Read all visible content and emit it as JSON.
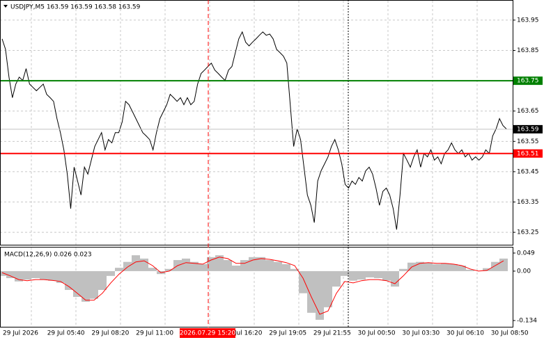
{
  "chart_data": [
    {
      "type": "line",
      "title": "USDJPY,M5  163.59 163.59 163.58 163.59",
      "xlabels": [
        "29 Jul 2026",
        "29 Jul 05:40",
        "29 Jul 08:20",
        "29 Jul 11:00",
        "29 Jul 13:40",
        "29 Jul 16:20",
        "29 Jul 19:05",
        "29 Jul 21:55",
        "30 Jul 00:50",
        "30 Jul 03:30",
        "30 Jul 06:10",
        "30 Jul 08:50"
      ],
      "crosshair_label": "2026.07.29 15:20",
      "ylim": [
        163.209,
        164.014
      ],
      "yticks": [
        163.95,
        163.85,
        163.65,
        163.55,
        163.45,
        163.35,
        163.25
      ],
      "grid": true,
      "levels": [
        {
          "value": 163.75,
          "color": "#008000"
        },
        {
          "value": 163.51,
          "color": "#ff0000"
        }
      ],
      "last": 163.59,
      "series": [
        {
          "color": "#000000",
          "values": [
            163.888,
            163.854,
            163.762,
            163.694,
            163.739,
            163.762,
            163.751,
            163.79,
            163.739,
            163.728,
            163.717,
            163.728,
            163.739,
            163.705,
            163.694,
            163.682,
            163.625,
            163.579,
            163.522,
            163.442,
            163.328,
            163.465,
            163.419,
            163.373,
            163.465,
            163.442,
            163.488,
            163.533,
            163.556,
            163.579,
            163.522,
            163.556,
            163.545,
            163.579,
            163.579,
            163.614,
            163.682,
            163.671,
            163.648,
            163.625,
            163.602,
            163.579,
            163.568,
            163.556,
            163.522,
            163.579,
            163.625,
            163.648,
            163.671,
            163.705,
            163.694,
            163.682,
            163.694,
            163.671,
            163.694,
            163.671,
            163.682,
            163.739,
            163.774,
            163.785,
            163.797,
            163.808,
            163.785,
            163.774,
            163.762,
            163.751,
            163.785,
            163.797,
            163.843,
            163.888,
            163.911,
            163.877,
            163.865,
            163.877,
            163.888,
            163.9,
            163.911,
            163.9,
            163.904,
            163.888,
            163.854,
            163.843,
            163.831,
            163.808,
            163.671,
            163.533,
            163.591,
            163.556,
            163.465,
            163.373,
            163.339,
            163.282,
            163.419,
            163.453,
            163.476,
            163.499,
            163.533,
            163.556,
            163.522,
            163.476,
            163.408,
            163.396,
            163.419,
            163.408,
            163.431,
            163.419,
            163.453,
            163.465,
            163.442,
            163.396,
            163.339,
            163.385,
            163.396,
            163.373,
            163.328,
            163.259,
            163.373,
            163.51,
            163.488,
            163.465,
            163.499,
            163.522,
            163.465,
            163.51,
            163.499,
            163.522,
            163.488,
            163.499,
            163.476,
            163.51,
            163.522,
            163.545,
            163.522,
            163.51,
            163.522,
            163.499,
            163.51,
            163.488,
            163.499,
            163.488,
            163.499,
            163.522,
            163.51,
            163.568,
            163.591,
            163.625,
            163.602,
            163.591
          ]
        }
      ]
    },
    {
      "type": "macd",
      "title": "MACD(12,26,9) 0.026 0.023",
      "ylim": [
        -0.151,
        0.064
      ],
      "yticks": [
        0.049,
        {
          "value": 0,
          "label": "0.00"
        },
        -0.134
      ],
      "series": [
        {
          "kind": "bar",
          "color": "#c0c0c0",
          "values": [
            -0.013,
            -0.019,
            -0.028,
            -0.023,
            -0.019,
            -0.023,
            -0.026,
            -0.032,
            -0.051,
            -0.07,
            -0.083,
            -0.075,
            -0.051,
            -0.013,
            0.009,
            0.025,
            0.043,
            0.034,
            0.009,
            -0.008,
            0.006,
            0.03,
            0.034,
            0.025,
            0.019,
            0.038,
            0.043,
            0.03,
            0.015,
            0.03,
            0.038,
            0.038,
            0.03,
            0.025,
            0.019,
            0.006,
            -0.06,
            -0.113,
            -0.132,
            -0.098,
            -0.042,
            -0.013,
            -0.026,
            -0.023,
            -0.017,
            -0.019,
            -0.026,
            -0.042,
            0.006,
            0.023,
            0.025,
            0.023,
            0.019,
            0.021,
            0.019,
            0.015,
            0.004,
            0.0,
            0.008,
            0.025,
            0.034
          ]
        },
        {
          "kind": "line",
          "color": "#ff0000",
          "values": [
            -0.004,
            -0.013,
            -0.023,
            -0.026,
            -0.023,
            -0.023,
            -0.025,
            -0.028,
            -0.042,
            -0.06,
            -0.079,
            -0.079,
            -0.06,
            -0.032,
            -0.008,
            0.011,
            0.025,
            0.028,
            0.015,
            -0.004,
            0.0,
            0.015,
            0.023,
            0.021,
            0.019,
            0.03,
            0.038,
            0.034,
            0.021,
            0.021,
            0.03,
            0.034,
            0.032,
            0.028,
            0.023,
            0.015,
            -0.019,
            -0.07,
            -0.117,
            -0.108,
            -0.06,
            -0.028,
            -0.032,
            -0.026,
            -0.023,
            -0.023,
            -0.026,
            -0.034,
            -0.013,
            0.011,
            0.021,
            0.023,
            0.021,
            0.021,
            0.019,
            0.015,
            0.006,
            0.0,
            0.002,
            0.015,
            0.028
          ]
        }
      ]
    }
  ]
}
